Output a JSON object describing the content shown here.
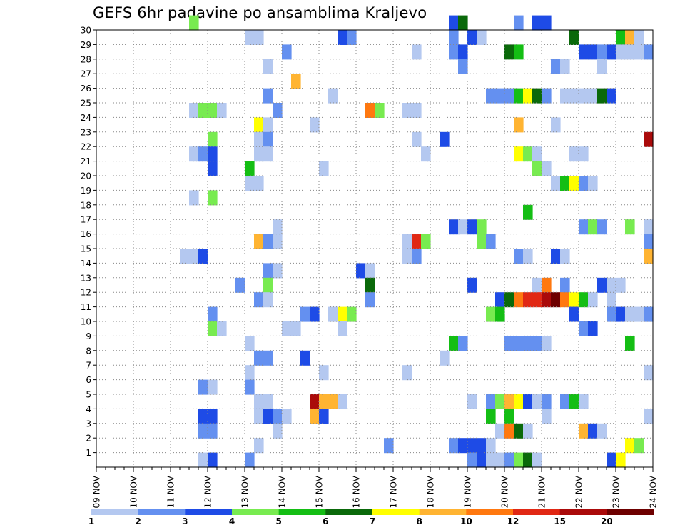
{
  "chart_data": {
    "type": "heatmap",
    "title": "GEFS 6hr padavine po ansamblima Kraljevo",
    "xlabel": "",
    "ylabel": "",
    "x_tick_labels": [
      "09 NOV",
      "10 NOV",
      "11 NOV",
      "12 NOV",
      "13 NOV",
      "14 NOV",
      "15 NOV",
      "16 NOV",
      "17 NOV",
      "18 NOV",
      "19 NOV",
      "20 NOV",
      "21 NOV",
      "22 NOV",
      "23 NOV",
      "24 NOV"
    ],
    "y_tick_labels": [
      "1",
      "2",
      "3",
      "4",
      "5",
      "6",
      "7",
      "8",
      "9",
      "10",
      "11",
      "12",
      "13",
      "14",
      "15",
      "16",
      "17",
      "18",
      "19",
      "20",
      "21",
      "22",
      "23",
      "24",
      "25",
      "26",
      "27",
      "28",
      "29",
      "30"
    ],
    "x_range_steps": [
      0,
      60
    ],
    "y_range_members": [
      0,
      30
    ],
    "steps_per_day": 4,
    "grid": true,
    "legend_position": "bottom",
    "colorbar": {
      "labels": [
        "1",
        "2",
        "3",
        "4",
        "5",
        "6",
        "7",
        "8",
        "10",
        "12",
        "15",
        "20"
      ],
      "colors": [
        "#b4c8f0",
        "#6490f0",
        "#1e4be6",
        "#78eb50",
        "#14be14",
        "#0a690a",
        "#ffff00",
        "#ffb432",
        "#ff780f",
        "#e12814",
        "#aa0a0a",
        "#6e0000"
      ]
    },
    "cells": [
      [
        10,
        30,
        4
      ],
      [
        38,
        30,
        3
      ],
      [
        39,
        30,
        6
      ],
      [
        45,
        30,
        2
      ],
      [
        47,
        30,
        3
      ],
      [
        48,
        30,
        3
      ],
      [
        16,
        29,
        1
      ],
      [
        17,
        29,
        1
      ],
      [
        26,
        29,
        3
      ],
      [
        27,
        29,
        2
      ],
      [
        38,
        29,
        2
      ],
      [
        40,
        29,
        3
      ],
      [
        41,
        29,
        1
      ],
      [
        51,
        29,
        6
      ],
      [
        56,
        29,
        5
      ],
      [
        57,
        29,
        8
      ],
      [
        58,
        29,
        1
      ],
      [
        20,
        28,
        2
      ],
      [
        34,
        28,
        1
      ],
      [
        38,
        28,
        2
      ],
      [
        39,
        28,
        3
      ],
      [
        44,
        28,
        6
      ],
      [
        45,
        28,
        5
      ],
      [
        52,
        28,
        3
      ],
      [
        53,
        28,
        3
      ],
      [
        54,
        28,
        2
      ],
      [
        55,
        28,
        3
      ],
      [
        56,
        28,
        1
      ],
      [
        57,
        28,
        1
      ],
      [
        58,
        28,
        1
      ],
      [
        59,
        28,
        2
      ],
      [
        18,
        27,
        1
      ],
      [
        39,
        27,
        2
      ],
      [
        49,
        27,
        2
      ],
      [
        50,
        27,
        1
      ],
      [
        54,
        27,
        1
      ],
      [
        21,
        26,
        8
      ],
      [
        18,
        25,
        2
      ],
      [
        25,
        25,
        1
      ],
      [
        42,
        25,
        2
      ],
      [
        43,
        25,
        2
      ],
      [
        44,
        25,
        2
      ],
      [
        45,
        25,
        5
      ],
      [
        46,
        25,
        7
      ],
      [
        47,
        25,
        6
      ],
      [
        48,
        25,
        2
      ],
      [
        50,
        25,
        1
      ],
      [
        51,
        25,
        1
      ],
      [
        52,
        25,
        1
      ],
      [
        53,
        25,
        1
      ],
      [
        54,
        25,
        6
      ],
      [
        55,
        25,
        3
      ],
      [
        10,
        24,
        1
      ],
      [
        11,
        24,
        4
      ],
      [
        12,
        24,
        4
      ],
      [
        13,
        24,
        1
      ],
      [
        19,
        24,
        2
      ],
      [
        29,
        24,
        9
      ],
      [
        30,
        24,
        4
      ],
      [
        33,
        24,
        1
      ],
      [
        34,
        24,
        1
      ],
      [
        17,
        23,
        7
      ],
      [
        18,
        23,
        1
      ],
      [
        23,
        23,
        1
      ],
      [
        45,
        23,
        8
      ],
      [
        49,
        23,
        1
      ],
      [
        12,
        22,
        4
      ],
      [
        17,
        22,
        1
      ],
      [
        18,
        22,
        2
      ],
      [
        34,
        22,
        1
      ],
      [
        37,
        22,
        3
      ],
      [
        59,
        22,
        11
      ],
      [
        10,
        21,
        1
      ],
      [
        11,
        21,
        2
      ],
      [
        12,
        21,
        3
      ],
      [
        17,
        21,
        1
      ],
      [
        18,
        21,
        1
      ],
      [
        35,
        21,
        1
      ],
      [
        45,
        21,
        7
      ],
      [
        46,
        21,
        4
      ],
      [
        47,
        21,
        1
      ],
      [
        51,
        21,
        1
      ],
      [
        52,
        21,
        1
      ],
      [
        12,
        20,
        3
      ],
      [
        16,
        20,
        5
      ],
      [
        24,
        20,
        1
      ],
      [
        47,
        20,
        4
      ],
      [
        48,
        20,
        1
      ],
      [
        16,
        19,
        1
      ],
      [
        17,
        19,
        1
      ],
      [
        49,
        19,
        1
      ],
      [
        50,
        19,
        5
      ],
      [
        51,
        19,
        7
      ],
      [
        52,
        19,
        2
      ],
      [
        53,
        19,
        1
      ],
      [
        10,
        18,
        1
      ],
      [
        12,
        18,
        4
      ],
      [
        46,
        17,
        5
      ],
      [
        19,
        16,
        1
      ],
      [
        38,
        16,
        3
      ],
      [
        39,
        16,
        1
      ],
      [
        40,
        16,
        3
      ],
      [
        41,
        16,
        4
      ],
      [
        52,
        16,
        2
      ],
      [
        53,
        16,
        4
      ],
      [
        54,
        16,
        2
      ],
      [
        57,
        16,
        4
      ],
      [
        59,
        16,
        1
      ],
      [
        17,
        15,
        8
      ],
      [
        18,
        15,
        2
      ],
      [
        19,
        15,
        1
      ],
      [
        33,
        15,
        1
      ],
      [
        34,
        15,
        10
      ],
      [
        35,
        15,
        4
      ],
      [
        41,
        15,
        4
      ],
      [
        42,
        15,
        2
      ],
      [
        59,
        15,
        2
      ],
      [
        9,
        14,
        1
      ],
      [
        10,
        14,
        1
      ],
      [
        11,
        14,
        3
      ],
      [
        33,
        14,
        1
      ],
      [
        34,
        14,
        2
      ],
      [
        45,
        14,
        2
      ],
      [
        46,
        14,
        1
      ],
      [
        49,
        14,
        3
      ],
      [
        50,
        14,
        1
      ],
      [
        59,
        14,
        8
      ],
      [
        18,
        13,
        2
      ],
      [
        19,
        13,
        1
      ],
      [
        28,
        13,
        3
      ],
      [
        29,
        13,
        1
      ],
      [
        15,
        12,
        2
      ],
      [
        18,
        12,
        4
      ],
      [
        29,
        12,
        6
      ],
      [
        40,
        12,
        3
      ],
      [
        47,
        12,
        1
      ],
      [
        48,
        12,
        9
      ],
      [
        50,
        12,
        2
      ],
      [
        54,
        12,
        3
      ],
      [
        55,
        12,
        1
      ],
      [
        56,
        12,
        1
      ],
      [
        17,
        11,
        2
      ],
      [
        18,
        11,
        1
      ],
      [
        29,
        11,
        2
      ],
      [
        43,
        11,
        3
      ],
      [
        44,
        11,
        6
      ],
      [
        45,
        11,
        9
      ],
      [
        46,
        11,
        10
      ],
      [
        47,
        11,
        10
      ],
      [
        48,
        11,
        11
      ],
      [
        49,
        11,
        12
      ],
      [
        50,
        11,
        9
      ],
      [
        51,
        11,
        7
      ],
      [
        52,
        11,
        5
      ],
      [
        53,
        11,
        1
      ],
      [
        55,
        11,
        1
      ],
      [
        12,
        10,
        2
      ],
      [
        22,
        10,
        2
      ],
      [
        23,
        10,
        3
      ],
      [
        25,
        10,
        1
      ],
      [
        26,
        10,
        7
      ],
      [
        27,
        10,
        4
      ],
      [
        42,
        10,
        4
      ],
      [
        43,
        10,
        5
      ],
      [
        51,
        10,
        3
      ],
      [
        55,
        10,
        2
      ],
      [
        56,
        10,
        3
      ],
      [
        57,
        10,
        1
      ],
      [
        58,
        10,
        1
      ],
      [
        59,
        10,
        2
      ],
      [
        12,
        9,
        4
      ],
      [
        13,
        9,
        1
      ],
      [
        20,
        9,
        1
      ],
      [
        21,
        9,
        1
      ],
      [
        26,
        9,
        1
      ],
      [
        52,
        9,
        2
      ],
      [
        53,
        9,
        3
      ],
      [
        16,
        8,
        1
      ],
      [
        38,
        8,
        5
      ],
      [
        39,
        8,
        2
      ],
      [
        44,
        8,
        2
      ],
      [
        45,
        8,
        2
      ],
      [
        46,
        8,
        2
      ],
      [
        47,
        8,
        2
      ],
      [
        48,
        8,
        1
      ],
      [
        57,
        8,
        5
      ],
      [
        17,
        7,
        2
      ],
      [
        18,
        7,
        2
      ],
      [
        22,
        7,
        3
      ],
      [
        37,
        7,
        1
      ],
      [
        16,
        6,
        1
      ],
      [
        24,
        6,
        1
      ],
      [
        33,
        6,
        1
      ],
      [
        59,
        6,
        1
      ],
      [
        11,
        5,
        2
      ],
      [
        12,
        5,
        1
      ],
      [
        16,
        5,
        2
      ],
      [
        17,
        4,
        1
      ],
      [
        18,
        4,
        1
      ],
      [
        23,
        4,
        11
      ],
      [
        24,
        4,
        8
      ],
      [
        25,
        4,
        8
      ],
      [
        26,
        4,
        1
      ],
      [
        40,
        4,
        1
      ],
      [
        42,
        4,
        2
      ],
      [
        43,
        4,
        4
      ],
      [
        44,
        4,
        8
      ],
      [
        45,
        4,
        7
      ],
      [
        46,
        4,
        3
      ],
      [
        47,
        4,
        1
      ],
      [
        48,
        4,
        2
      ],
      [
        50,
        4,
        2
      ],
      [
        51,
        4,
        5
      ],
      [
        52,
        4,
        1
      ],
      [
        11,
        3,
        3
      ],
      [
        12,
        3,
        3
      ],
      [
        17,
        3,
        1
      ],
      [
        18,
        3,
        3
      ],
      [
        19,
        3,
        2
      ],
      [
        20,
        3,
        1
      ],
      [
        23,
        3,
        8
      ],
      [
        24,
        3,
        3
      ],
      [
        42,
        3,
        5
      ],
      [
        44,
        3,
        5
      ],
      [
        48,
        3,
        1
      ],
      [
        59,
        3,
        1
      ],
      [
        11,
        2,
        2
      ],
      [
        12,
        2,
        2
      ],
      [
        19,
        2,
        1
      ],
      [
        43,
        2,
        1
      ],
      [
        44,
        2,
        9
      ],
      [
        45,
        2,
        6
      ],
      [
        46,
        2,
        1
      ],
      [
        52,
        2,
        8
      ],
      [
        53,
        2,
        3
      ],
      [
        54,
        2,
        1
      ],
      [
        17,
        1,
        1
      ],
      [
        31,
        1,
        2
      ],
      [
        38,
        1,
        2
      ],
      [
        39,
        1,
        3
      ],
      [
        40,
        1,
        3
      ],
      [
        41,
        1,
        3
      ],
      [
        42,
        1,
        1
      ],
      [
        57,
        1,
        7
      ],
      [
        58,
        1,
        4
      ],
      [
        11,
        0,
        1
      ],
      [
        12,
        0,
        3
      ],
      [
        16,
        0,
        2
      ],
      [
        40,
        0,
        2
      ],
      [
        41,
        0,
        3
      ],
      [
        42,
        0,
        1
      ],
      [
        43,
        0,
        1
      ],
      [
        44,
        0,
        2
      ],
      [
        45,
        0,
        4
      ],
      [
        46,
        0,
        6
      ],
      [
        47,
        0,
        1
      ],
      [
        55,
        0,
        3
      ],
      [
        56,
        0,
        7
      ]
    ]
  }
}
